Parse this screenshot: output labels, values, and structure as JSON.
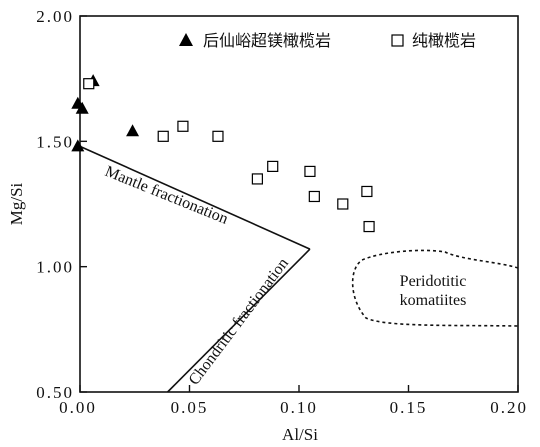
{
  "chart_data": {
    "type": "scatter",
    "xlabel": "Al/Si",
    "ylabel": "Mg/Si",
    "xlim": [
      0.0,
      0.2
    ],
    "ylim": [
      0.5,
      2.0
    ],
    "x_ticks": [
      "0.00",
      "0.05",
      "0.10",
      "0.15",
      "0.20"
    ],
    "y_ticks": [
      "0.50",
      "1.00",
      "1.50",
      "2.00"
    ],
    "legend_position": "top-right",
    "series": [
      {
        "name": "后仙峪超镁橄榄岩",
        "marker": "filled-triangle",
        "color": "#000000",
        "points": [
          [
            0.006,
            1.74
          ],
          [
            -0.001,
            1.65
          ],
          [
            0.001,
            1.63
          ],
          [
            0.024,
            1.54
          ],
          [
            -0.001,
            1.48
          ]
        ]
      },
      {
        "name": "纯橄榄岩",
        "marker": "open-square",
        "color": "#000000",
        "points": [
          [
            0.004,
            1.73
          ],
          [
            0.038,
            1.52
          ],
          [
            0.047,
            1.56
          ],
          [
            0.063,
            1.52
          ],
          [
            0.081,
            1.35
          ],
          [
            0.088,
            1.4
          ],
          [
            0.105,
            1.38
          ],
          [
            0.107,
            1.28
          ],
          [
            0.12,
            1.25
          ],
          [
            0.131,
            1.3
          ],
          [
            0.132,
            1.16
          ]
        ]
      }
    ],
    "lines": [
      {
        "label": "Mantle fractionation",
        "from": [
          0.0,
          1.48
        ],
        "to": [
          0.105,
          1.07
        ]
      },
      {
        "label": "Chondritic fractionation",
        "from": [
          0.105,
          1.07
        ],
        "to": [
          0.04,
          0.5
        ]
      }
    ],
    "field": {
      "label_lines": [
        "Peridotitic",
        "komatiites"
      ],
      "style": "dashed"
    }
  }
}
